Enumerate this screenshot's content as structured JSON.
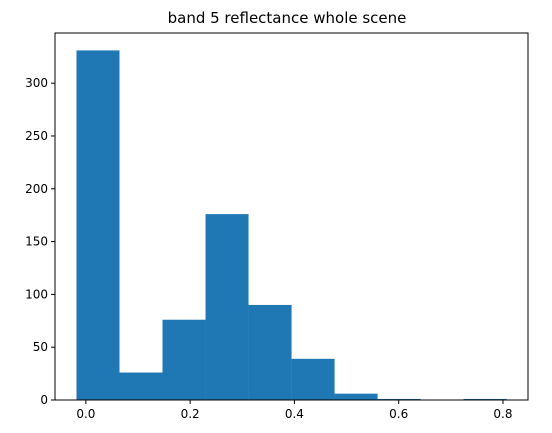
{
  "chart_data": {
    "type": "bar",
    "subtype": "histogram",
    "title": "band 5 reflectance whole scene",
    "xlabel": "",
    "ylabel": "",
    "bin_edges": [
      -0.018,
      0.0645,
      0.147,
      0.2295,
      0.312,
      0.3945,
      0.477,
      0.5595,
      0.642,
      0.7245,
      0.807
    ],
    "counts": [
      331,
      26,
      76,
      176,
      90,
      39,
      6,
      1,
      0,
      1
    ],
    "xlim": [
      -0.0592,
      0.848
    ],
    "ylim": [
      0,
      347.5
    ],
    "xticks": [
      0.0,
      0.2,
      0.4,
      0.6,
      0.8
    ],
    "xtick_labels": [
      "0.0",
      "0.2",
      "0.4",
      "0.6",
      "0.8"
    ],
    "yticks": [
      0,
      50,
      100,
      150,
      200,
      250,
      300
    ],
    "ytick_labels": [
      "0",
      "50",
      "100",
      "150",
      "200",
      "250",
      "300"
    ],
    "bar_color": "#1f77b4",
    "grid": false
  }
}
